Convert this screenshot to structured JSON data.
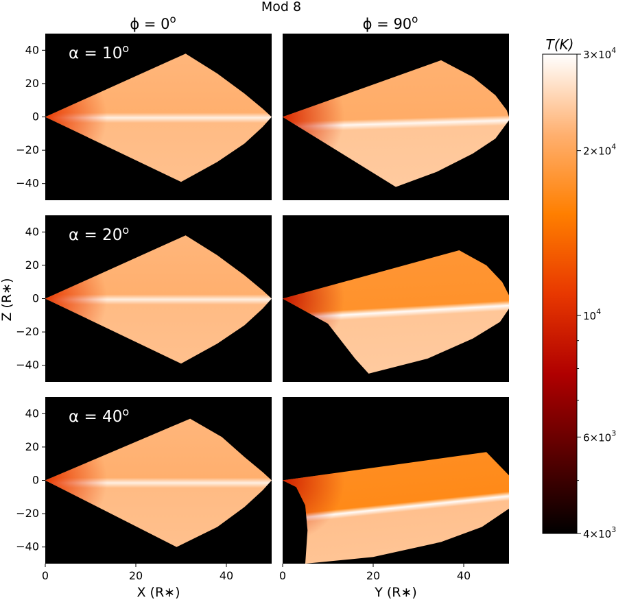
{
  "chart_data": {
    "type": "heatmap",
    "title": "Mod 8",
    "column_titles": [
      {
        "prefix": "ϕ = 0",
        "superscript": "o"
      },
      {
        "prefix": "ϕ = 90",
        "superscript": "o"
      }
    ],
    "row_labels": [
      {
        "prefix": "α = 10",
        "superscript": "o"
      },
      {
        "prefix": "α = 20",
        "superscript": "o"
      },
      {
        "prefix": "α = 40",
        "superscript": "o"
      }
    ],
    "xlabels": [
      "X (R∗)",
      "Y (R∗)"
    ],
    "ylabel": "Z (R∗)",
    "xlim": [
      0,
      50
    ],
    "ylim": [
      -50,
      50
    ],
    "xticks": [
      0,
      20,
      40
    ],
    "yticks": [
      40,
      20,
      0,
      -20,
      -40
    ],
    "colorbar": {
      "label": "T(K)",
      "scale": "log",
      "range": [
        4000,
        30000
      ],
      "major_ticks": [
        {
          "value": 30000,
          "mantissa": "3",
          "exp": "4"
        },
        {
          "value": 20000,
          "mantissa": "2",
          "exp": "4"
        },
        {
          "value": 10000,
          "mantissa": "",
          "exp": "4"
        },
        {
          "value": 6000,
          "mantissa": "6",
          "exp": "3"
        },
        {
          "value": 4000,
          "mantissa": "4",
          "exp": "3"
        }
      ],
      "minor_ticks": [
        9000,
        8000,
        7000,
        5000
      ],
      "colors": [
        "#000000",
        "#5a0000",
        "#b00000",
        "#e83800",
        "#ff7f00",
        "#ffb070",
        "#ffffff"
      ]
    },
    "background_color": "#000000",
    "panels": [
      {
        "row": 0,
        "col": 0,
        "top_t": 22000,
        "bottom_t": 22500,
        "mid_t": 28000,
        "near_t": 11000,
        "top_outline": [
          [
            0,
            0
          ],
          [
            31,
            38
          ],
          [
            38,
            26
          ],
          [
            44,
            14
          ],
          [
            48,
            5
          ],
          [
            50,
            0
          ]
        ],
        "bottom_outline": [
          [
            0,
            0
          ],
          [
            30,
            -39
          ],
          [
            38,
            -27
          ],
          [
            44,
            -16
          ],
          [
            48,
            -6
          ],
          [
            50,
            0
          ]
        ],
        "tilt": 0
      },
      {
        "row": 0,
        "col": 1,
        "top_t": 21500,
        "bottom_t": 23500,
        "mid_t": 29000,
        "near_t": 10000,
        "top_outline": [
          [
            0,
            0
          ],
          [
            35,
            34
          ],
          [
            42,
            24
          ],
          [
            47,
            13
          ],
          [
            49.5,
            4
          ],
          [
            50,
            0
          ]
        ],
        "bottom_outline": [
          [
            0,
            0
          ],
          [
            25,
            -42
          ],
          [
            34,
            -33
          ],
          [
            42,
            -22
          ],
          [
            47,
            -13
          ],
          [
            50,
            -2
          ]
        ],
        "tilt": -3
      },
      {
        "row": 1,
        "col": 0,
        "top_t": 22000,
        "bottom_t": 22500,
        "mid_t": 28000,
        "near_t": 11000,
        "top_outline": [
          [
            0,
            0
          ],
          [
            31,
            38
          ],
          [
            38,
            26
          ],
          [
            44,
            14
          ],
          [
            48,
            5
          ],
          [
            50,
            0
          ]
        ],
        "bottom_outline": [
          [
            0,
            0
          ],
          [
            30,
            -39
          ],
          [
            38,
            -27
          ],
          [
            44,
            -16
          ],
          [
            48,
            -6
          ],
          [
            50,
            0
          ]
        ],
        "tilt": 0
      },
      {
        "row": 1,
        "col": 1,
        "top_t": 18000,
        "bottom_t": 23500,
        "mid_t": 29500,
        "near_t": 9000,
        "top_outline": [
          [
            0,
            0
          ],
          [
            39,
            29
          ],
          [
            45,
            20
          ],
          [
            48.5,
            10
          ],
          [
            50,
            2
          ]
        ],
        "bottom_outline": [
          [
            0,
            0
          ],
          [
            10,
            -15
          ],
          [
            16,
            -36
          ],
          [
            19,
            -45
          ],
          [
            32,
            -36
          ],
          [
            42,
            -24
          ],
          [
            48,
            -14
          ],
          [
            50,
            -6
          ]
        ],
        "tilt": -6
      },
      {
        "row": 2,
        "col": 0,
        "top_t": 22000,
        "bottom_t": 22500,
        "mid_t": 28000,
        "near_t": 11000,
        "top_outline": [
          [
            0,
            0
          ],
          [
            32,
            37
          ],
          [
            39,
            26
          ],
          [
            44,
            14
          ],
          [
            48,
            5
          ],
          [
            50,
            0
          ]
        ],
        "bottom_outline": [
          [
            0,
            0
          ],
          [
            29,
            -40
          ],
          [
            38,
            -28
          ],
          [
            44,
            -16
          ],
          [
            48,
            -6
          ],
          [
            50,
            0
          ]
        ],
        "tilt": 0
      },
      {
        "row": 2,
        "col": 1,
        "top_t": 17000,
        "bottom_t": 23000,
        "mid_t": 29500,
        "near_t": 9500,
        "top_outline": [
          [
            0,
            0
          ],
          [
            45,
            17
          ],
          [
            50,
            3
          ]
        ],
        "bottom_outline": [
          [
            0,
            0
          ],
          [
            3,
            -4
          ],
          [
            5,
            -15
          ],
          [
            5.5,
            -30
          ],
          [
            5,
            -50
          ],
          [
            20,
            -46
          ],
          [
            35,
            -37
          ],
          [
            44,
            -28
          ],
          [
            50,
            -17
          ]
        ],
        "tilt": -12
      }
    ]
  }
}
